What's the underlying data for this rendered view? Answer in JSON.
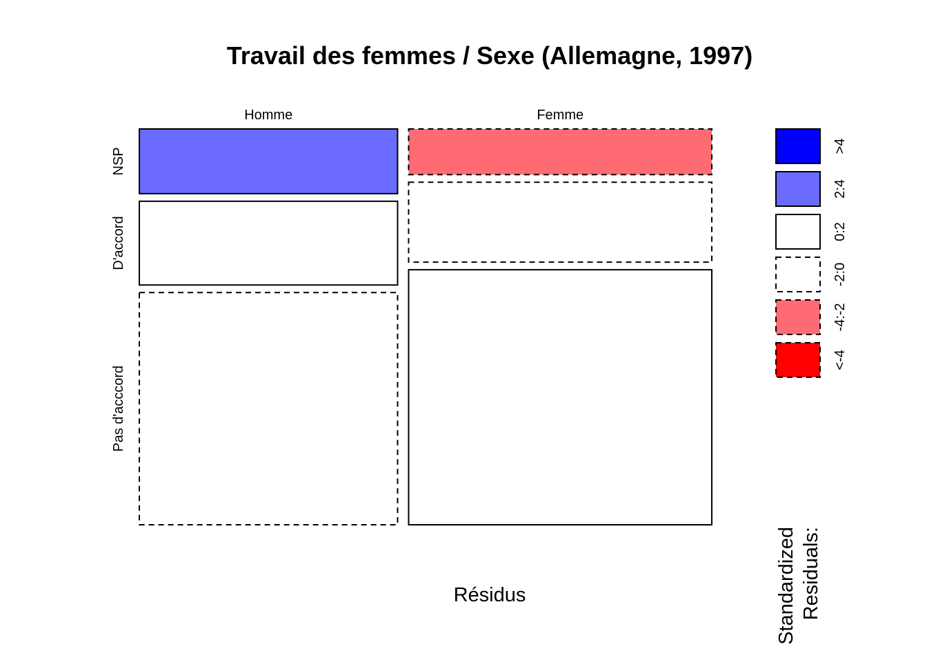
{
  "chart_data": {
    "type": "mosaic",
    "title": "Travail des femmes / Sexe (Allemagne, 1997)",
    "xlabel": "Résidus",
    "columns": [
      "Homme",
      "Femme"
    ],
    "rows": [
      "NSP",
      "D'accord",
      "Pas d'acccord"
    ],
    "column_proportions": [
      0.46,
      0.54
    ],
    "cells": [
      {
        "column": "Homme",
        "row": "NSP",
        "proportion": 0.17,
        "residual_class": "2:4"
      },
      {
        "column": "Homme",
        "row": "D'accord",
        "proportion": 0.22,
        "residual_class": "0:2"
      },
      {
        "column": "Homme",
        "row": "Pas d'acccord",
        "proportion": 0.61,
        "residual_class": "-2:0"
      },
      {
        "column": "Femme",
        "row": "NSP",
        "proportion": 0.12,
        "residual_class": "-4:-2"
      },
      {
        "column": "Femme",
        "row": "D'accord",
        "proportion": 0.21,
        "residual_class": "-2:0"
      },
      {
        "column": "Femme",
        "row": "Pas d'acccord",
        "proportion": 0.67,
        "residual_class": "0:2"
      }
    ],
    "legend": {
      "title_lines": [
        "Standardized",
        "Residuals:"
      ],
      "entries": [
        {
          "label": ">4",
          "color": "#0000ff",
          "dashed": false
        },
        {
          "label": "2:4",
          "color": "#6b6bff",
          "dashed": false
        },
        {
          "label": "0:2",
          "color": "#ffffff",
          "dashed": false
        },
        {
          "label": "-2:0",
          "color": "#ffffff",
          "dashed": true
        },
        {
          "label": "-4:-2",
          "color": "#ff6b73",
          "dashed": true
        },
        {
          "label": "<-4",
          "color": "#ff0000",
          "dashed": true
        }
      ]
    }
  }
}
